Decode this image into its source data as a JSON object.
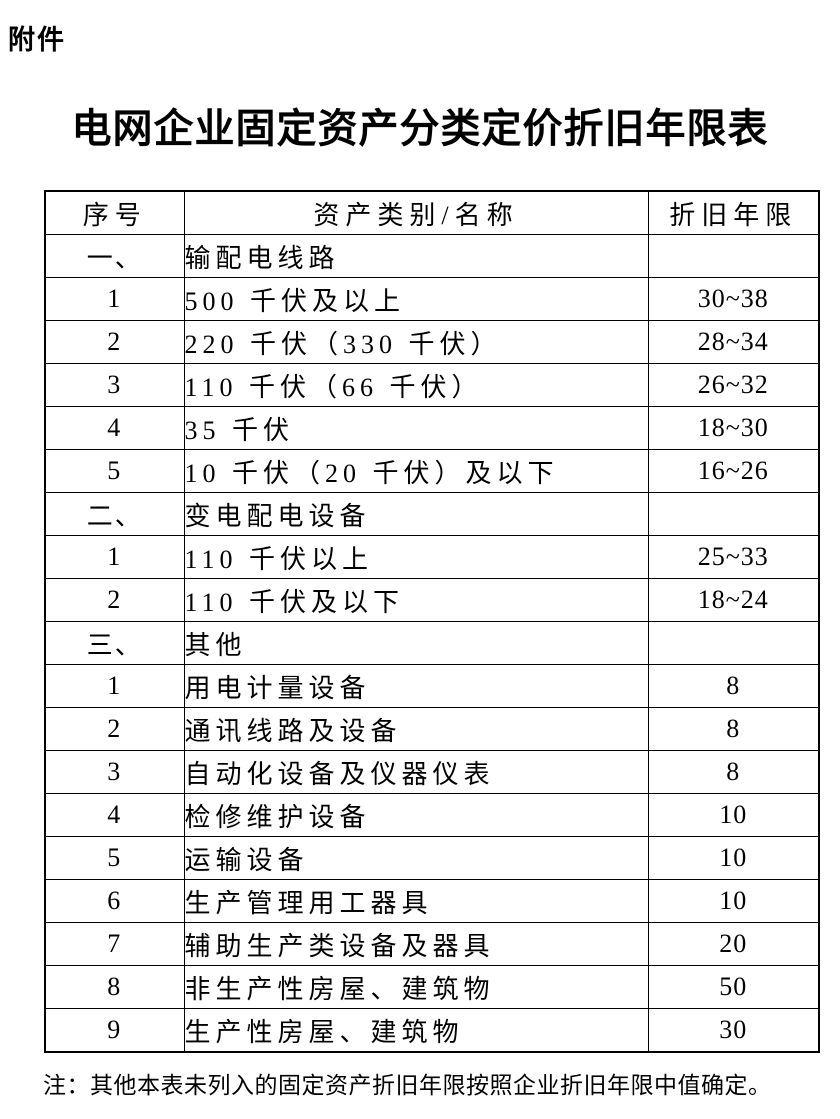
{
  "page": {
    "attachment_label": "附件",
    "title": "电网企业固定资产分类定价折旧年限表",
    "note": "注：其他本表未列入的固定资产折旧年限按照企业折旧年限中值确定。"
  },
  "table": {
    "headers": [
      "序号",
      "资产类别/名称",
      "折旧年限"
    ],
    "rows": [
      {
        "no": "一、",
        "name": "输配电线路",
        "years": ""
      },
      {
        "no": "1",
        "name": "500 千伏及以上",
        "years": "30~38"
      },
      {
        "no": "2",
        "name": "220 千伏（330 千伏）",
        "years": "28~34"
      },
      {
        "no": "3",
        "name": "110 千伏（66 千伏）",
        "years": "26~32"
      },
      {
        "no": "4",
        "name": "35 千伏",
        "years": "18~30"
      },
      {
        "no": "5",
        "name": "10 千伏（20 千伏）及以下",
        "years": "16~26"
      },
      {
        "no": "二、",
        "name": "变电配电设备",
        "years": ""
      },
      {
        "no": "1",
        "name": "110 千伏以上",
        "years": "25~33"
      },
      {
        "no": "2",
        "name": "110 千伏及以下",
        "years": "18~24"
      },
      {
        "no": "三、",
        "name": "其他",
        "years": ""
      },
      {
        "no": "1",
        "name": "用电计量设备",
        "years": "8"
      },
      {
        "no": "2",
        "name": "通讯线路及设备",
        "years": "8"
      },
      {
        "no": "3",
        "name": "自动化设备及仪器仪表",
        "years": "8"
      },
      {
        "no": "4",
        "name": "检修维护设备",
        "years": "10"
      },
      {
        "no": "5",
        "name": "运输设备",
        "years": "10"
      },
      {
        "no": "6",
        "name": "生产管理用工器具",
        "years": "10"
      },
      {
        "no": "7",
        "name": "辅助生产类设备及器具",
        "years": "20"
      },
      {
        "no": "8",
        "name": "非生产性房屋、建筑物",
        "years": "50"
      },
      {
        "no": "9",
        "name": "生产性房屋、建筑物",
        "years": "30"
      }
    ]
  },
  "colors": {
    "text": "#000000",
    "background": "#ffffff",
    "border": "#000000"
  }
}
